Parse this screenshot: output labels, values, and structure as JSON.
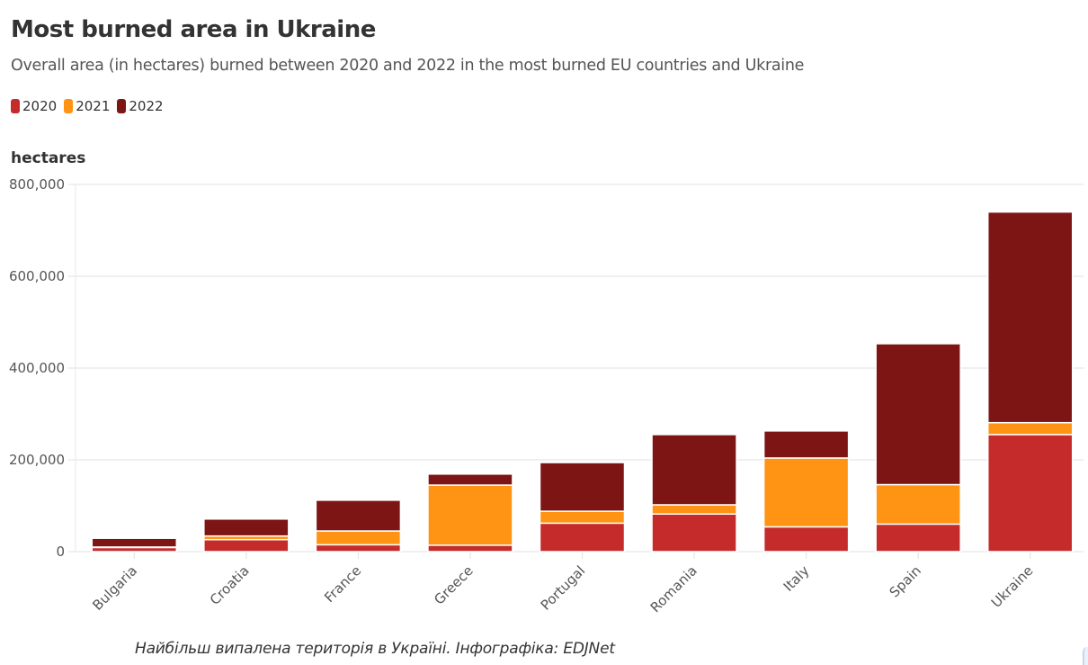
{
  "header": {
    "title": "Most burned area in Ukraine",
    "subtitle": "Overall area (in hectares) burned between 2020 and 2022 in the most burned EU countries and Ukraine"
  },
  "legend": [
    {
      "label": "2020",
      "color": "#c62b2b"
    },
    {
      "label": "2021",
      "color": "#ff9314"
    },
    {
      "label": "2022",
      "color": "#7e1515"
    }
  ],
  "caption": "Найбільш випалена територія в Україні. Інфографіка: EDJNet",
  "chart_data": {
    "type": "bar",
    "stacked": true,
    "title": "Most burned area in Ukraine",
    "subtitle": "Overall area (in hectares) burned between 2020 and 2022 in the most burned EU countries and Ukraine",
    "xlabel": "",
    "ylabel": "hectares",
    "ylim": [
      0,
      800000
    ],
    "yticks": [
      0,
      200000,
      400000,
      600000,
      800000
    ],
    "ytick_labels": [
      "0",
      "200,000",
      "400,000",
      "600,000",
      "800,000"
    ],
    "grid": true,
    "legend_position": "top-left",
    "categories": [
      "Bulgaria",
      "Croatia",
      "France",
      "Greece",
      "Portugal",
      "Romania",
      "Italy",
      "Spain",
      "Ukraine"
    ],
    "series": [
      {
        "name": "2020",
        "color": "#c62b2b",
        "values": [
          9000,
          26000,
          15000,
          14000,
          62000,
          82000,
          54000,
          60000,
          255000
        ]
      },
      {
        "name": "2021",
        "color": "#ff9314",
        "values": [
          1000,
          8000,
          30000,
          131000,
          26000,
          20000,
          150000,
          86000,
          26000
        ]
      },
      {
        "name": "2022",
        "color": "#7e1515",
        "values": [
          19000,
          37000,
          67000,
          24000,
          106000,
          153000,
          59000,
          307000,
          459000
        ]
      }
    ]
  }
}
